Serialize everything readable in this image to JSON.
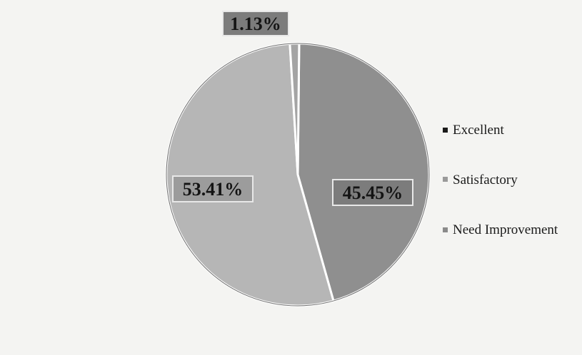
{
  "chart_data": {
    "type": "pie",
    "title": "",
    "legend_position": "right",
    "slices": [
      {
        "label": "Excellent",
        "value": 45.45,
        "display": "45.45%",
        "color": "#8f8f8f"
      },
      {
        "label": "Satisfactory",
        "value": 53.41,
        "display": "53.41%",
        "color": "#b6b6b6"
      },
      {
        "label": "Need Improvement",
        "value": 1.13,
        "display": "1.13%",
        "color": "#a4a4a4"
      }
    ],
    "legend": [
      {
        "label": "Excellent",
        "marker_color": "#1a1a1a"
      },
      {
        "label": "Satisfactory",
        "marker_color": "#9a9a9a"
      },
      {
        "label": "Need Improvement",
        "marker_color": "#8a8a8a"
      }
    ]
  }
}
